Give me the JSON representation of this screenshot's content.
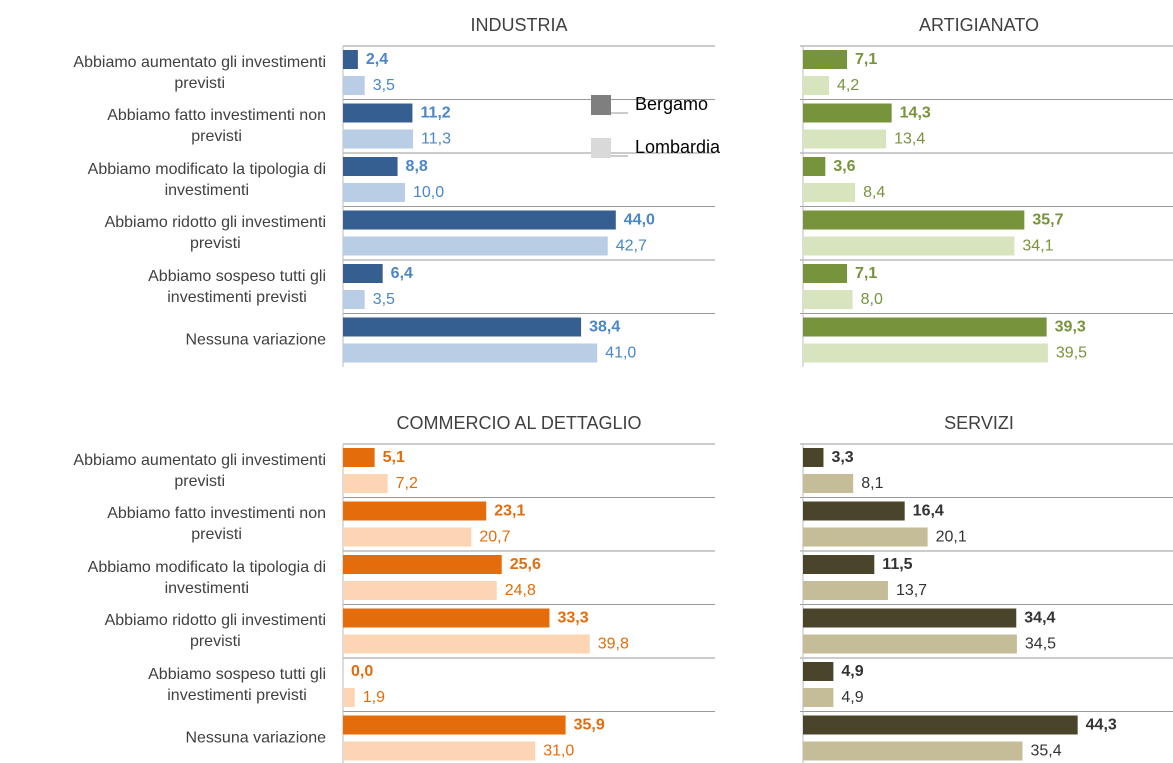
{
  "legend": {
    "items": [
      {
        "name": "Bergamo",
        "color": "#7f7f7f"
      },
      {
        "name": "Lombardia",
        "color": "#d9d9d9"
      }
    ]
  },
  "chart_data": [
    {
      "type": "bar",
      "orientation": "horizontal",
      "title": "INDUSTRIA",
      "xlim": [
        0,
        60
      ],
      "categories": [
        "Abbiamo aumentato gli investimenti\nprevisti",
        "Abbiamo fatto investimenti non\nprevisti",
        "Abbiamo modificato la tipologia di\ninvestimenti",
        "Abbiamo ridotto gli investimenti\nprevisti",
        "Abbiamo sospeso tutti gli\ninvestimenti previsti",
        "Nessuna variazione"
      ],
      "series": [
        {
          "color": "#365f91",
          "label_color": "#4a86c8",
          "font_weight": "bold",
          "values": [
            2.4,
            11.2,
            8.8,
            44.0,
            6.4,
            38.4
          ],
          "value_labels": [
            "2,4",
            "11,2",
            "8,8",
            "44,0",
            "6,4",
            "38,4"
          ]
        },
        {
          "color": "#b9cde5",
          "label_color": "#4a86c8",
          "font_weight": "normal",
          "values": [
            3.5,
            11.3,
            10.0,
            42.7,
            3.5,
            41.0
          ],
          "value_labels": [
            "3,5",
            "11,3",
            "10,0",
            "42,7",
            "3,5",
            "41,0"
          ]
        }
      ]
    },
    {
      "type": "bar",
      "orientation": "horizontal",
      "title": "ARTIGIANATO",
      "xlim": [
        0,
        60
      ],
      "series": [
        {
          "color": "#77933c",
          "label_color": "#77933c",
          "font_weight": "bold",
          "values": [
            7.1,
            14.3,
            3.6,
            35.7,
            7.1,
            39.3
          ],
          "value_labels": [
            "7,1",
            "14,3",
            "3,6",
            "35,7",
            "7,1",
            "39,3"
          ]
        },
        {
          "color": "#d7e4bd",
          "label_color": "#77933c",
          "font_weight": "normal",
          "values": [
            4.2,
            13.4,
            8.4,
            34.1,
            8.0,
            39.5
          ],
          "value_labels": [
            "4,2",
            "13,4",
            "8,4",
            "34,1",
            "8,0",
            "39,5"
          ]
        }
      ]
    },
    {
      "type": "bar",
      "orientation": "horizontal",
      "title": "COMMERCIO AL DETTAGLIO",
      "xlim": [
        0,
        60
      ],
      "categories": [
        "Abbiamo aumentato gli investimenti\nprevisti",
        "Abbiamo fatto investimenti non\nprevisti",
        "Abbiamo modificato la tipologia di\ninvestimenti",
        "Abbiamo ridotto gli investimenti\nprevisti",
        "Abbiamo sospeso tutti gli\ninvestimenti previsti",
        "Nessuna variazione"
      ],
      "series": [
        {
          "color": "#e46c0a",
          "label_color": "#e46c0a",
          "font_weight": "bold",
          "values": [
            5.1,
            23.1,
            25.6,
            33.3,
            0.0,
            35.9
          ],
          "value_labels": [
            "5,1",
            "23,1",
            "25,6",
            "33,3",
            "0,0",
            "35,9"
          ]
        },
        {
          "color": "#fcd5b5",
          "label_color": "#e46c0a",
          "font_weight": "normal",
          "values": [
            7.2,
            20.7,
            24.8,
            39.8,
            1.9,
            31.0
          ],
          "value_labels": [
            "7,2",
            "20,7",
            "24,8",
            "39,8",
            "1,9",
            "31,0"
          ]
        }
      ]
    },
    {
      "type": "bar",
      "orientation": "horizontal",
      "title": "SERVIZI",
      "xlim": [
        0,
        60
      ],
      "series": [
        {
          "color": "#4a452a",
          "label_color": "#333",
          "font_weight": "bold",
          "values": [
            3.3,
            16.4,
            11.5,
            34.4,
            4.9,
            44.3
          ],
          "value_labels": [
            "3,3",
            "16,4",
            "11,5",
            "34,4",
            "4,9",
            "44,3"
          ]
        },
        {
          "color": "#c4bd97",
          "label_color": "#333",
          "font_weight": "normal",
          "values": [
            8.1,
            20.1,
            13.7,
            34.5,
            4.9,
            35.4
          ],
          "value_labels": [
            "8,1",
            "20,1",
            "13,7",
            "34,5",
            "4,9",
            "35,4"
          ]
        }
      ]
    }
  ]
}
